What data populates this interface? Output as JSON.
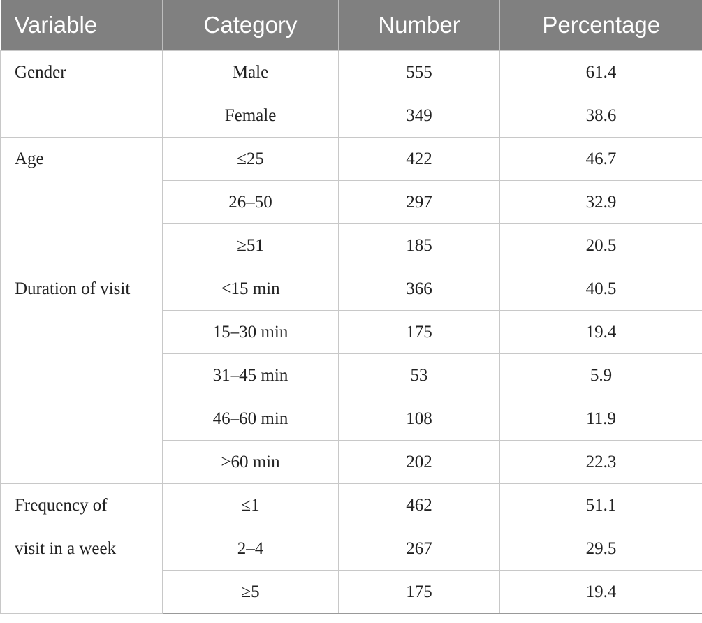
{
  "table": {
    "header": [
      "Variable",
      "Category",
      "Number",
      "Percentage"
    ],
    "groups": [
      {
        "variable": "Gender",
        "rows": [
          [
            "Male",
            555,
            61.4
          ],
          [
            "Female",
            349,
            38.6
          ]
        ]
      },
      {
        "variable": "Age",
        "rows": [
          [
            "≤25",
            422,
            46.7
          ],
          [
            "26–50",
            297,
            32.9
          ],
          [
            "≥51",
            185,
            20.5
          ]
        ]
      },
      {
        "variable": "Duration of visit",
        "rows": [
          [
            "<15 min",
            366,
            40.5
          ],
          [
            "15–30 min",
            175,
            19.4
          ],
          [
            "31–45 min",
            53,
            5.9
          ],
          [
            "46–60 min",
            108,
            11.9
          ],
          [
            ">60 min",
            202,
            22.3
          ]
        ]
      },
      {
        "variable": "Frequency of visit in a week",
        "rows": [
          [
            "≤1",
            462,
            51.1
          ],
          [
            "2–4",
            267,
            29.5
          ],
          [
            "≥5",
            175,
            19.4
          ]
        ]
      }
    ]
  }
}
